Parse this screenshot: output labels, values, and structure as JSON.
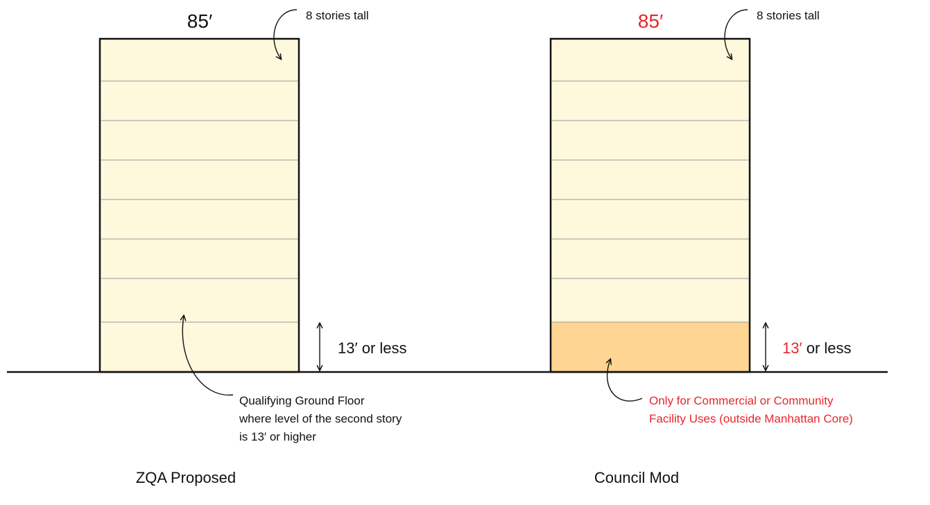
{
  "panels": [
    {
      "height_label": "85′",
      "stories_label": "8 stories tall",
      "ground_height": "13′",
      "ground_suffix": "or less",
      "note_lines": [
        "Qualifying Ground Floor",
        "where level of the second story",
        "is 13′ or higher"
      ],
      "caption": "ZQA Proposed"
    },
    {
      "height_label": "85′",
      "stories_label": "8 stories tall",
      "ground_height": "13′",
      "ground_suffix": "or less",
      "note_lines": [
        "Only for Commercial or Community",
        "Facility Uses (outside Manhattan Core)"
      ],
      "caption": "Council Mod"
    }
  ]
}
